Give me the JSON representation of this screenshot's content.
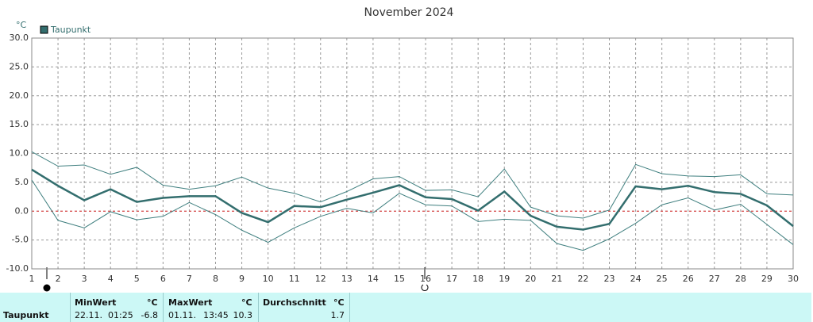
{
  "chart_data": {
    "type": "line",
    "title": "November 2024",
    "y_unit": "°C",
    "x": [
      1,
      2,
      3,
      4,
      5,
      6,
      7,
      8,
      9,
      10,
      11,
      12,
      13,
      14,
      15,
      16,
      17,
      18,
      19,
      20,
      21,
      22,
      23,
      24,
      25,
      26,
      27,
      28,
      29,
      30
    ],
    "xlim": [
      1,
      30
    ],
    "xticks": [
      1,
      2,
      3,
      4,
      5,
      6,
      7,
      8,
      9,
      10,
      11,
      12,
      13,
      14,
      15,
      16,
      17,
      18,
      19,
      20,
      21,
      22,
      23,
      24,
      25,
      26,
      27,
      28,
      29,
      30
    ],
    "ylim": [
      -10,
      30
    ],
    "yticks": [
      {
        "value": -10,
        "label": "-10.0"
      },
      {
        "value": -5,
        "label": "-5.0"
      },
      {
        "value": 0,
        "label": "0.0"
      },
      {
        "value": 5,
        "label": "5.0"
      },
      {
        "value": 10,
        "label": "10.0"
      },
      {
        "value": 15,
        "label": "15.0"
      },
      {
        "value": 20,
        "label": "20.0"
      },
      {
        "value": 25,
        "label": "25.0"
      },
      {
        "value": 30,
        "label": "30.0"
      }
    ],
    "grid": true,
    "zero_line_color": "#e03030",
    "legend_position": "top-left",
    "series": [
      {
        "name": "Taupunkt",
        "color": "#336e6e",
        "line_width": 2.5,
        "values": [
          7.2,
          4.4,
          1.9,
          3.8,
          1.6,
          2.3,
          2.6,
          2.6,
          -0.3,
          -1.9,
          0.9,
          0.7,
          2.0,
          3.2,
          4.5,
          2.4,
          2.1,
          0.1,
          3.4,
          -0.8,
          -2.7,
          -3.2,
          -2.2,
          4.3,
          3.8,
          4.4,
          3.3,
          3.0,
          1.0,
          -2.6
        ]
      },
      {
        "color": "#3f7f7f",
        "line_width": 1,
        "values": [
          10.3,
          7.8,
          8.0,
          6.4,
          7.6,
          4.5,
          3.8,
          4.4,
          5.9,
          4.0,
          3.1,
          1.6,
          3.4,
          5.6,
          6.0,
          3.6,
          3.7,
          2.5,
          7.3,
          0.7,
          -0.8,
          -1.2,
          0.2,
          8.1,
          6.5,
          6.1,
          6.0,
          6.3,
          3.0,
          2.8
        ]
      },
      {
        "color": "#3f7f7f",
        "line_width": 1,
        "values": [
          5.4,
          -1.6,
          -2.9,
          -0.1,
          -1.5,
          -0.9,
          1.5,
          -0.6,
          -3.3,
          -5.4,
          -2.9,
          -0.9,
          0.5,
          -0.3,
          3.1,
          1.1,
          0.9,
          -1.8,
          -1.4,
          -1.6,
          -5.6,
          -6.8,
          -4.8,
          -2.1,
          1.1,
          2.3,
          0.2,
          1.2,
          -2.3,
          -5.8
        ]
      }
    ]
  },
  "stats": {
    "row_label": "Taupunkt",
    "min_header": "MinWert",
    "max_header": "MaxWert",
    "avg_header": "Durchschnitt",
    "unit": "°C",
    "min_date": "22.11.",
    "min_time": "01:25",
    "min_value": -6.8,
    "max_date": "01.11.",
    "max_time": "13:45",
    "max_value": 10.3,
    "avg_value": 1.7
  }
}
